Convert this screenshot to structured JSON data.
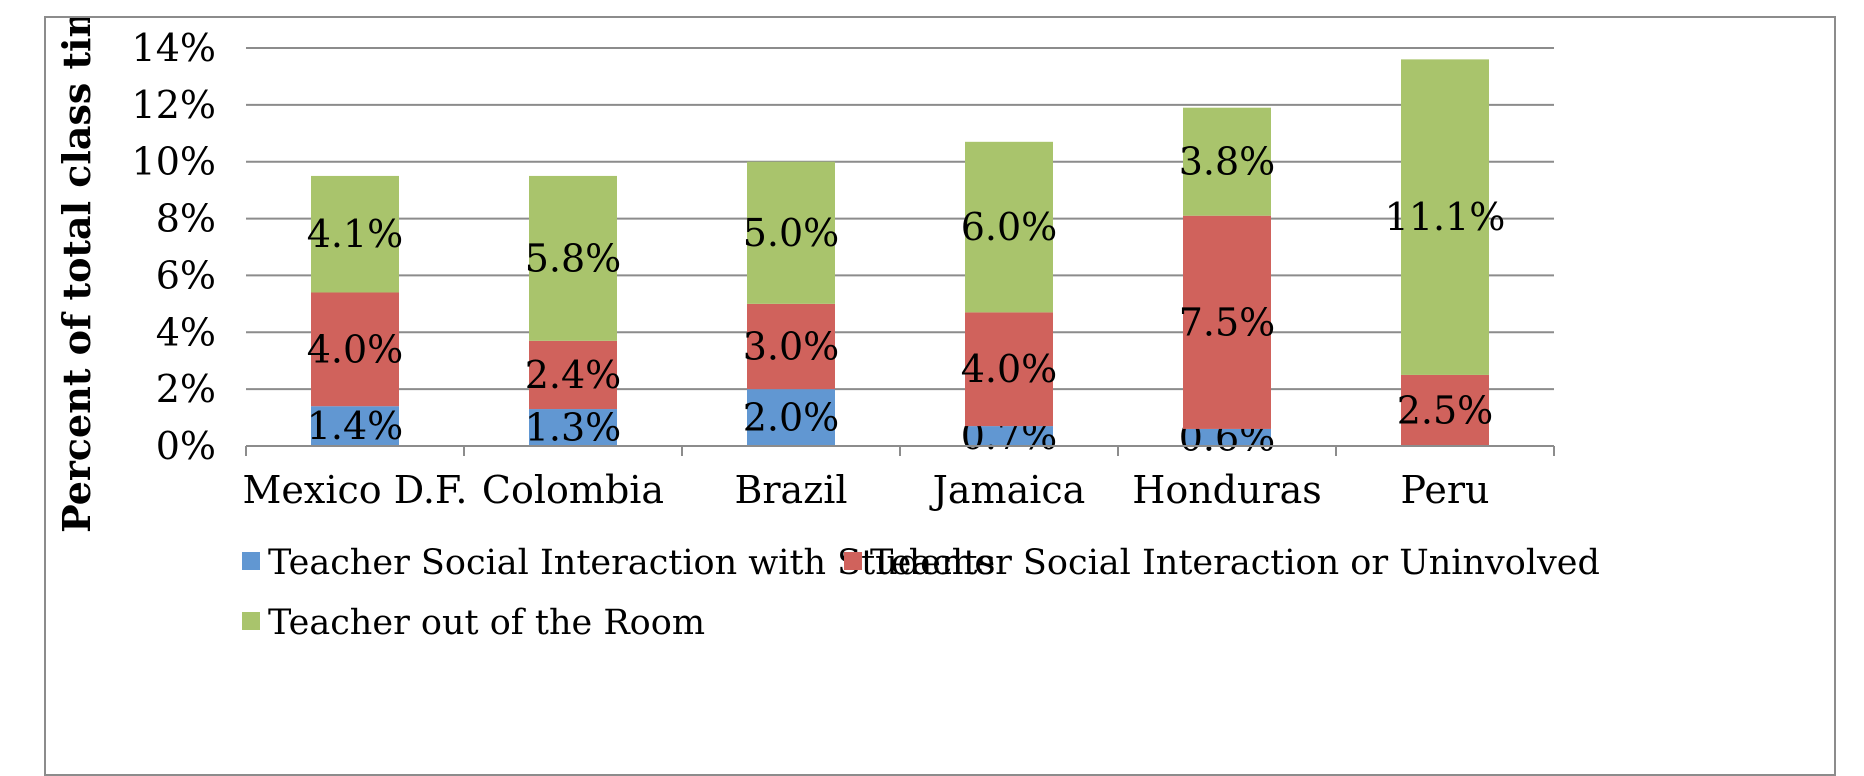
{
  "chart_data": {
    "type": "bar",
    "stacked": true,
    "title": "",
    "xlabel": "",
    "ylabel": "Percent of total class time",
    "ylim": [
      0,
      14
    ],
    "y_ticks": [
      "0%",
      "2%",
      "4%",
      "6%",
      "8%",
      "10%",
      "12%",
      "14%"
    ],
    "categories": [
      "Mexico D.F.",
      "Colombia",
      "Brazil",
      "Jamaica",
      "Honduras",
      "Peru"
    ],
    "series": [
      {
        "name": "Teacher Social Interaction with Students",
        "color": "#6197d2",
        "values": [
          1.4,
          1.3,
          2.0,
          0.7,
          0.6,
          0.0
        ],
        "labels": [
          "1.4%",
          "1.3%",
          "2.0%",
          "0.7%",
          "0.6%",
          ""
        ]
      },
      {
        "name": "Teacher Social Interaction or Uninvolved",
        "color": "#d0625c",
        "values": [
          4.0,
          2.4,
          3.0,
          4.0,
          7.5,
          2.5
        ],
        "labels": [
          "4.0%",
          "2.4%",
          "3.0%",
          "4.0%",
          "7.5%",
          "2.5%"
        ]
      },
      {
        "name": "Teacher out of the Room",
        "color": "#a9c46c",
        "values": [
          4.1,
          5.8,
          5.0,
          6.0,
          3.8,
          11.1
        ],
        "labels": [
          "4.1%",
          "5.8%",
          "5.0%",
          "6.0%",
          "3.8%",
          "11.1%"
        ]
      }
    ],
    "grid": true,
    "legend_position": "bottom"
  }
}
